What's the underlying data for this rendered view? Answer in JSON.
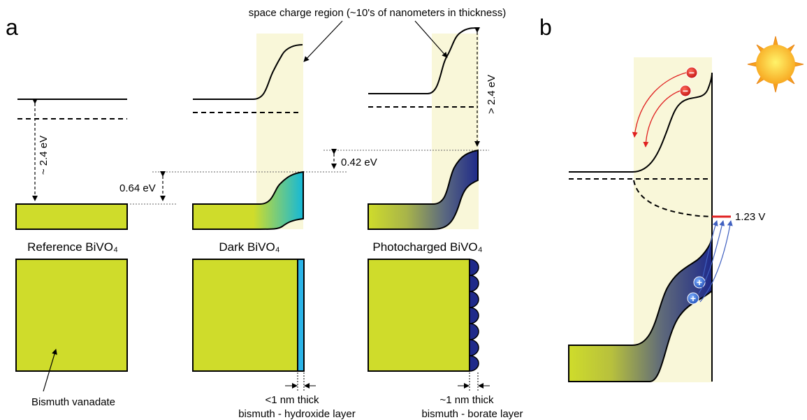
{
  "panels": {
    "a": "a",
    "b": "b"
  },
  "annotations": {
    "space_charge": "space charge region (~10's of nanometers in thickness)",
    "gap_reference": "~ 2.4 eV",
    "gap_photocharged": "> 2.4 eV",
    "offset_064": "0.64 eV",
    "offset_042": "0.42 eV",
    "voltage": "1.23 V"
  },
  "samples": [
    {
      "name": "Reference BiVO₄"
    },
    {
      "name": "Dark BiVO₄"
    },
    {
      "name": "Photocharged BiVO₄"
    }
  ],
  "bottom_labels": {
    "bulk": "Bismuth vanadate",
    "hydroxide_thickness": "<1 nm thick",
    "hydroxide_layer": "bismuth - hydroxide layer",
    "borate_thickness": "~1 nm thick",
    "borate_layer": "bismuth - borate layer"
  },
  "carriers": {
    "electron": "−",
    "hole": "+"
  },
  "colors": {
    "bivo4": "#cfdc2b",
    "space_charge": "#f9f7d9",
    "hydroxide": "#2bb4e8",
    "borate": "#1f2a8a",
    "electron": "#e02020",
    "hole": "#3060c8",
    "potential": "#e02020"
  }
}
